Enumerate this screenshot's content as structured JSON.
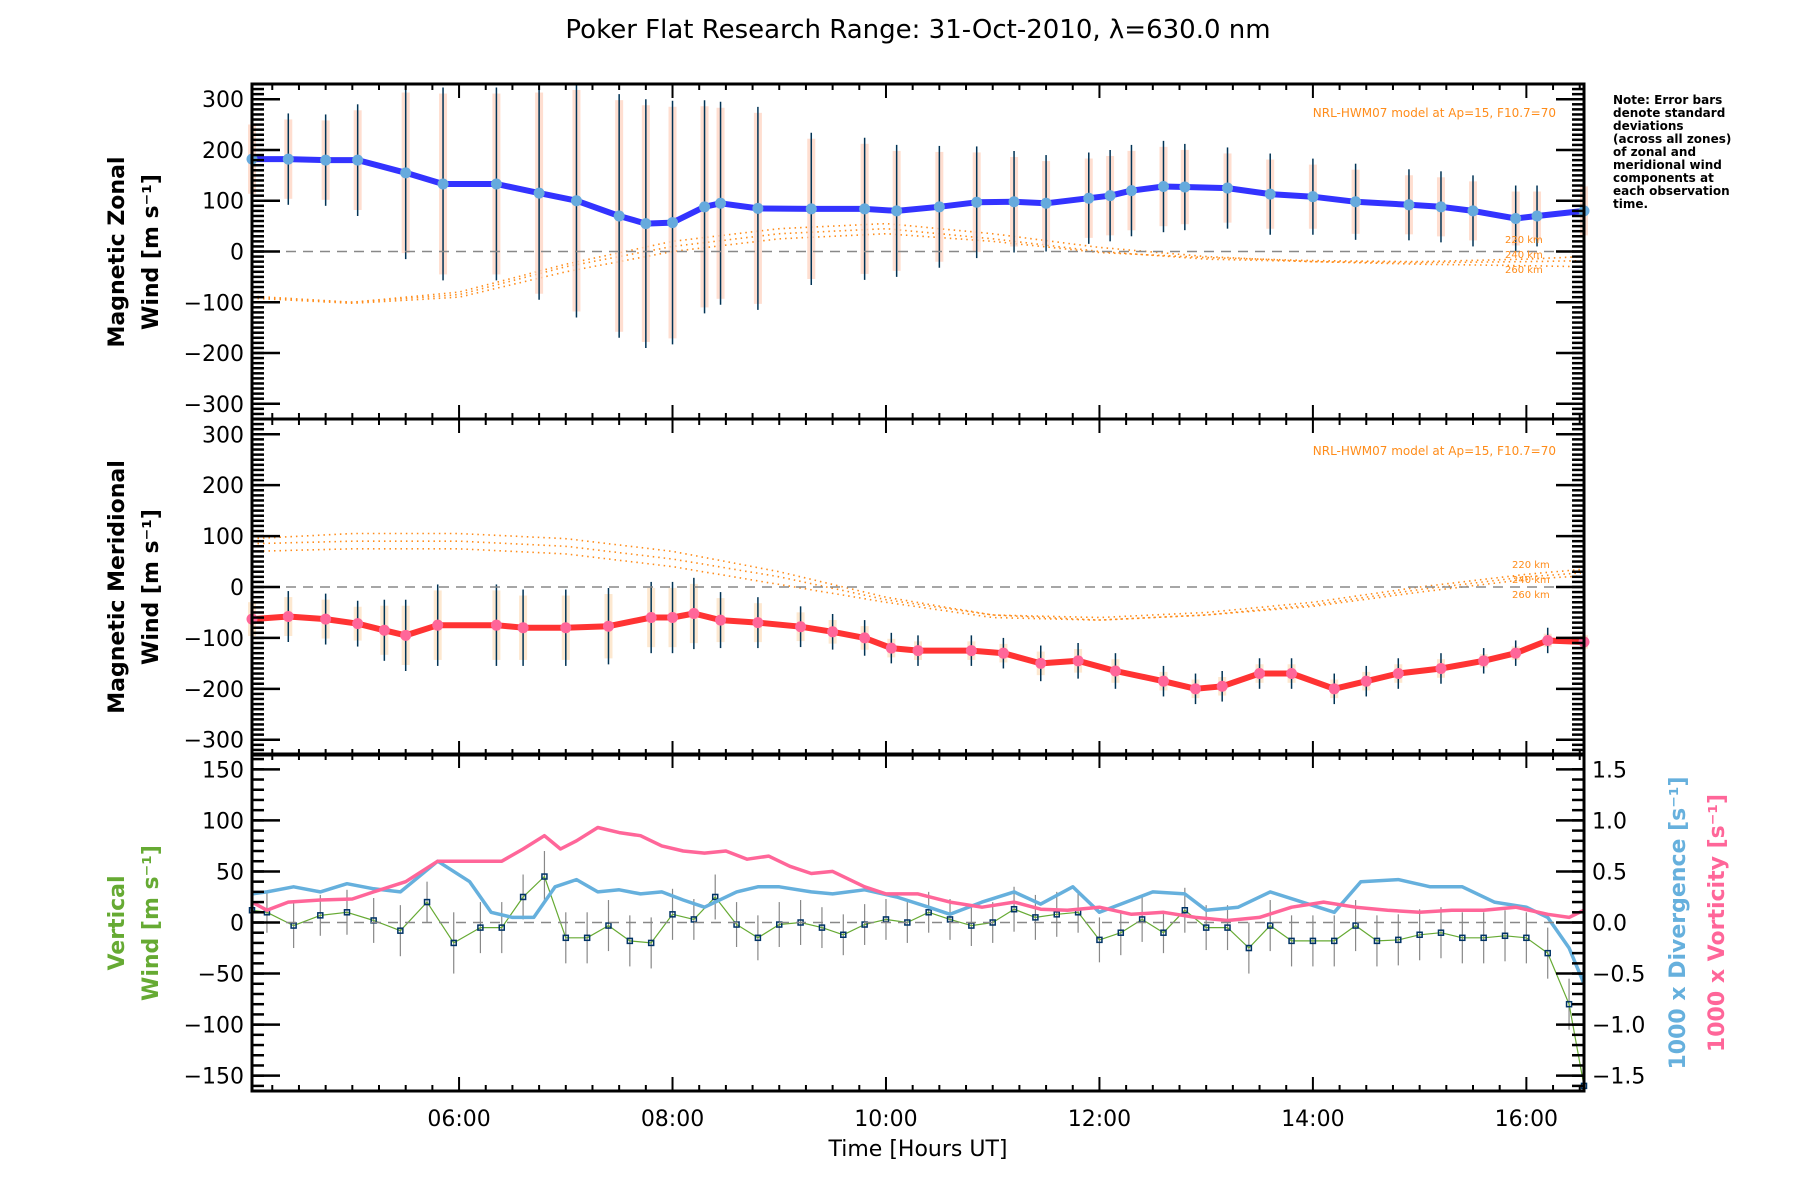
{
  "chart_data": {
    "type": "line",
    "title": "Poker Flat Research Range: 31-Oct-2010, λ=630.0 nm",
    "xlabel": "Time [Hours UT]",
    "xlim": [
      4.06,
      16.54
    ],
    "x_ticks": [
      {
        "value": 6,
        "label": "06:00"
      },
      {
        "value": 8,
        "label": "08:00"
      },
      {
        "value": 10,
        "label": "10:00"
      },
      {
        "value": 12,
        "label": "12:00"
      },
      {
        "value": 14,
        "label": "14:00"
      },
      {
        "value": 16,
        "label": "16:00"
      }
    ],
    "note": [
      "Note: Error bars",
      "denote standard",
      "deviations",
      "(across all zones)",
      "of zonal and",
      "meridional wind",
      "components at",
      "each observation",
      "time."
    ],
    "panels": [
      {
        "id": "zonal",
        "ylabel_line1": "Magnetic Zonal",
        "ylabel_line2": "Wind [m s⁻¹]",
        "ylim": [
          -330,
          330
        ],
        "y_ticks": [
          300,
          200,
          100,
          0,
          -100,
          -200,
          -300
        ],
        "zero_line": true,
        "model_label": "NRL-HWM07 model at Ap=15, F10.7=70",
        "model_altitudes": [
          "220 km",
          "240 km",
          "260 km"
        ],
        "series": [
          {
            "name": "Zonal wind",
            "color": "#3333ff",
            "marker_color": "#66aadd",
            "x": [
              4.06,
              4.4,
              4.75,
              5.05,
              5.5,
              5.85,
              6.35,
              6.75,
              7.1,
              7.5,
              7.75,
              8.0,
              8.3,
              8.45,
              8.8,
              9.3,
              9.8,
              10.1,
              10.5,
              10.85,
              11.2,
              11.5,
              11.9,
              12.1,
              12.3,
              12.6,
              12.8,
              13.2,
              13.6,
              14.0,
              14.4,
              14.9,
              15.2,
              15.5,
              15.9,
              16.1,
              16.54
            ],
            "y": [
              182,
              182,
              180,
              180,
              155,
              133,
              133,
              115,
              100,
              70,
              55,
              57,
              88,
              95,
              85,
              84,
              84,
              80,
              88,
              97,
              98,
              95,
              105,
              110,
              120,
              128,
              127,
              125,
              113,
              108,
              98,
              92,
              88,
              80,
              65,
              70,
              80
            ],
            "error": [
              80,
              90,
              90,
              110,
              170,
              190,
              190,
              210,
              230,
              240,
              245,
              240,
              210,
              200,
              200,
              150,
              140,
              130,
              120,
              110,
              100,
              95,
              90,
              90,
              90,
              90,
              85,
              80,
              80,
              75,
              75,
              70,
              70,
              70,
              65,
              60,
              60
            ]
          }
        ],
        "model_series": [
          {
            "name": "220 km",
            "x": [
              4.06,
              5,
              6,
              7,
              8,
              9,
              10,
              11,
              12,
              13,
              14,
              15,
              16,
              16.54
            ],
            "y": [
              -92,
              -102,
              -90,
              -40,
              0,
              25,
              35,
              20,
              -2,
              -12,
              -18,
              -20,
              -15,
              -10
            ]
          },
          {
            "name": "240 km",
            "x": [
              4.06,
              5,
              6,
              7,
              8,
              9,
              10,
              11,
              12,
              13,
              14,
              15,
              16,
              16.54
            ],
            "y": [
              -90,
              -100,
              -85,
              -30,
              10,
              35,
              45,
              25,
              0,
              -15,
              -20,
              -22,
              -20,
              -18
            ]
          },
          {
            "name": "260 km",
            "x": [
              4.06,
              5,
              6,
              7,
              8,
              9,
              10,
              11,
              12,
              13,
              14,
              15,
              16,
              16.54
            ],
            "y": [
              -88,
              -100,
              -80,
              -25,
              20,
              45,
              55,
              35,
              8,
              -10,
              -20,
              -25,
              -28,
              -30
            ]
          }
        ]
      },
      {
        "id": "meridional",
        "ylabel_line1": "Magnetic Meridional",
        "ylabel_line2": "Wind [m s⁻¹]",
        "ylim": [
          -330,
          330
        ],
        "y_ticks": [
          300,
          200,
          100,
          0,
          -100,
          -200,
          -300
        ],
        "zero_line": true,
        "model_label": "NRL-HWM07 model at Ap=15, F10.7=70",
        "model_altitudes": [
          "220 km",
          "240 km",
          "260 km"
        ],
        "series": [
          {
            "name": "Meridional wind",
            "color": "#ff3333",
            "marker_color": "#ff6699",
            "x": [
              4.06,
              4.4,
              4.75,
              5.05,
              5.3,
              5.5,
              5.8,
              6.35,
              6.6,
              7.0,
              7.4,
              7.8,
              8.0,
              8.2,
              8.45,
              8.8,
              9.2,
              9.5,
              9.8,
              10.05,
              10.3,
              10.8,
              11.1,
              11.45,
              11.8,
              12.15,
              12.6,
              12.9,
              13.15,
              13.5,
              13.8,
              14.2,
              14.5,
              14.8,
              15.2,
              15.6,
              15.9,
              16.2,
              16.54
            ],
            "y": [
              -63,
              -58,
              -63,
              -72,
              -85,
              -95,
              -75,
              -75,
              -80,
              -80,
              -77,
              -60,
              -60,
              -52,
              -65,
              -70,
              -78,
              -88,
              -100,
              -120,
              -125,
              -125,
              -130,
              -150,
              -145,
              -165,
              -185,
              -200,
              -195,
              -170,
              -170,
              -200,
              -185,
              -170,
              -160,
              -145,
              -130,
              -105,
              -108
            ],
            "error": [
              45,
              50,
              50,
              45,
              60,
              70,
              80,
              80,
              75,
              75,
              75,
              70,
              70,
              70,
              55,
              50,
              40,
              35,
              35,
              30,
              30,
              30,
              30,
              35,
              35,
              35,
              30,
              30,
              30,
              30,
              30,
              30,
              30,
              30,
              30,
              25,
              25,
              25,
              25
            ]
          }
        ],
        "model_series": [
          {
            "name": "220 km",
            "x": [
              4.06,
              5,
              6,
              7,
              8,
              9,
              10,
              11,
              12,
              13,
              14,
              15,
              16,
              16.54
            ],
            "y": [
              95,
              105,
              105,
              95,
              70,
              30,
              -20,
              -55,
              -60,
              -50,
              -30,
              0,
              25,
              35
            ]
          },
          {
            "name": "240 km",
            "x": [
              4.06,
              5,
              6,
              7,
              8,
              9,
              10,
              11,
              12,
              13,
              14,
              15,
              16,
              16.54
            ],
            "y": [
              85,
              90,
              90,
              80,
              55,
              20,
              -25,
              -55,
              -65,
              -55,
              -35,
              -5,
              20,
              28
            ]
          },
          {
            "name": "260 km",
            "x": [
              4.06,
              5,
              6,
              7,
              8,
              9,
              10,
              11,
              12,
              13,
              14,
              15,
              16,
              16.54
            ],
            "y": [
              70,
              75,
              75,
              65,
              40,
              5,
              -30,
              -60,
              -65,
              -55,
              -38,
              -10,
              15,
              22
            ]
          }
        ]
      },
      {
        "id": "vertical",
        "ylabel_line1": "Vertical",
        "ylabel_line2": "Wind [m s⁻¹]",
        "ylabel_color": "#66aa33",
        "ylim": [
          -165,
          165
        ],
        "y_ticks": [
          150,
          100,
          50,
          0,
          -50,
          -100,
          -150
        ],
        "zero_line": true,
        "right_axis": {
          "ylim": [
            -1.65,
            1.65
          ],
          "y_ticks": [
            1.5,
            1.0,
            0.5,
            0.0,
            -0.5,
            -1.0,
            -1.5
          ],
          "tick_labels": [
            "1.5",
            "1.0",
            "0.5",
            "0.0",
            "−0.5",
            "−1.0",
            "−1.5"
          ],
          "label_divergence": "1000 x Divergence [s⁻¹]",
          "label_vorticity": "1000 x Vorticity [s⁻¹]",
          "divergence_color": "#66b0dd",
          "vorticity_color": "#ff6699"
        },
        "series": [
          {
            "name": "Vertical wind",
            "color": "#66aa33",
            "marker_color": "#003366",
            "x": [
              4.06,
              4.2,
              4.45,
              4.7,
              4.95,
              5.2,
              5.45,
              5.7,
              5.95,
              6.2,
              6.4,
              6.6,
              6.8,
              7.0,
              7.2,
              7.4,
              7.6,
              7.8,
              8.0,
              8.2,
              8.4,
              8.6,
              8.8,
              9.0,
              9.2,
              9.4,
              9.6,
              9.8,
              10.0,
              10.2,
              10.4,
              10.6,
              10.8,
              11.0,
              11.2,
              11.4,
              11.6,
              11.8,
              12.0,
              12.2,
              12.4,
              12.6,
              12.8,
              13.0,
              13.2,
              13.4,
              13.6,
              13.8,
              14.0,
              14.2,
              14.4,
              14.6,
              14.8,
              15.0,
              15.2,
              15.4,
              15.6,
              15.8,
              16.0,
              16.2,
              16.4,
              16.54
            ],
            "y": [
              12,
              10,
              -3,
              7,
              10,
              2,
              -8,
              20,
              -20,
              -5,
              -5,
              25,
              45,
              -15,
              -15,
              -3,
              -18,
              -20,
              8,
              3,
              25,
              -2,
              -15,
              -2,
              0,
              -5,
              -12,
              -2,
              3,
              0,
              10,
              3,
              -3,
              0,
              13,
              5,
              8,
              10,
              -17,
              -10,
              3,
              -10,
              12,
              -5,
              -5,
              -25,
              -3,
              -18,
              -18,
              -18,
              -3,
              -18,
              -17,
              -12,
              -10,
              -15,
              -15,
              -13,
              -15,
              -30,
              -80,
              -160
            ],
            "error": [
              18,
              20,
              22,
              20,
              22,
              22,
              25,
              20,
              30,
              25,
              25,
              22,
              25,
              25,
              25,
              25,
              25,
              25,
              25,
              20,
              22,
              22,
              22,
              22,
              22,
              20,
              20,
              20,
              20,
              20,
              20,
              20,
              20,
              20,
              22,
              22,
              22,
              20,
              22,
              22,
              22,
              20,
              22,
              22,
              22,
              25,
              25,
              25,
              25,
              25,
              25,
              25,
              25,
              25,
              25,
              25,
              25,
              25,
              25,
              25,
              25,
              25
            ]
          },
          {
            "name": "1000 x Divergence",
            "axis": "right",
            "color": "#66b0dd",
            "x": [
              4.06,
              4.2,
              4.45,
              4.7,
              4.95,
              5.2,
              5.45,
              5.8,
              6.1,
              6.3,
              6.5,
              6.7,
              6.9,
              7.1,
              7.3,
              7.5,
              7.7,
              7.9,
              8.1,
              8.3,
              8.6,
              8.8,
              9.0,
              9.3,
              9.5,
              9.8,
              10.1,
              10.4,
              10.6,
              10.9,
              11.2,
              11.45,
              11.75,
              12.0,
              12.2,
              12.5,
              12.8,
              13.0,
              13.3,
              13.6,
              13.9,
              14.2,
              14.45,
              14.8,
              15.1,
              15.4,
              15.7,
              16.0,
              16.2,
              16.4,
              16.54
            ],
            "y": [
              0.28,
              0.3,
              0.35,
              0.3,
              0.38,
              0.33,
              0.3,
              0.6,
              0.4,
              0.1,
              0.05,
              0.05,
              0.35,
              0.42,
              0.3,
              0.32,
              0.28,
              0.3,
              0.22,
              0.15,
              0.3,
              0.35,
              0.35,
              0.3,
              0.28,
              0.32,
              0.25,
              0.15,
              0.08,
              0.2,
              0.3,
              0.18,
              0.35,
              0.1,
              0.18,
              0.3,
              0.28,
              0.12,
              0.15,
              0.3,
              0.2,
              0.1,
              0.4,
              0.42,
              0.35,
              0.35,
              0.2,
              0.15,
              0.05,
              -0.25,
              -0.6
            ]
          },
          {
            "name": "1000 x Vorticity",
            "axis": "right",
            "color": "#ff6699",
            "x": [
              4.06,
              4.2,
              4.4,
              4.7,
              5.0,
              5.2,
              5.5,
              5.8,
              6.0,
              6.4,
              6.6,
              6.8,
              6.95,
              7.1,
              7.3,
              7.5,
              7.7,
              7.9,
              8.1,
              8.3,
              8.5,
              8.7,
              8.9,
              9.1,
              9.3,
              9.5,
              9.8,
              10.0,
              10.3,
              10.6,
              10.9,
              11.2,
              11.45,
              11.7,
              12.0,
              12.3,
              12.6,
              12.9,
              13.2,
              13.5,
              13.8,
              14.1,
              14.4,
              14.7,
              15.0,
              15.3,
              15.6,
              15.9,
              16.2,
              16.4,
              16.54
            ],
            "y": [
              0.2,
              0.12,
              0.2,
              0.22,
              0.23,
              0.3,
              0.4,
              0.6,
              0.6,
              0.6,
              0.72,
              0.85,
              0.72,
              0.8,
              0.93,
              0.88,
              0.85,
              0.75,
              0.7,
              0.68,
              0.7,
              0.62,
              0.65,
              0.55,
              0.48,
              0.5,
              0.35,
              0.28,
              0.28,
              0.2,
              0.15,
              0.2,
              0.13,
              0.12,
              0.15,
              0.08,
              0.1,
              0.05,
              0.02,
              0.05,
              0.15,
              0.2,
              0.15,
              0.12,
              0.1,
              0.12,
              0.12,
              0.15,
              0.08,
              0.05,
              0.12
            ]
          }
        ]
      }
    ]
  }
}
